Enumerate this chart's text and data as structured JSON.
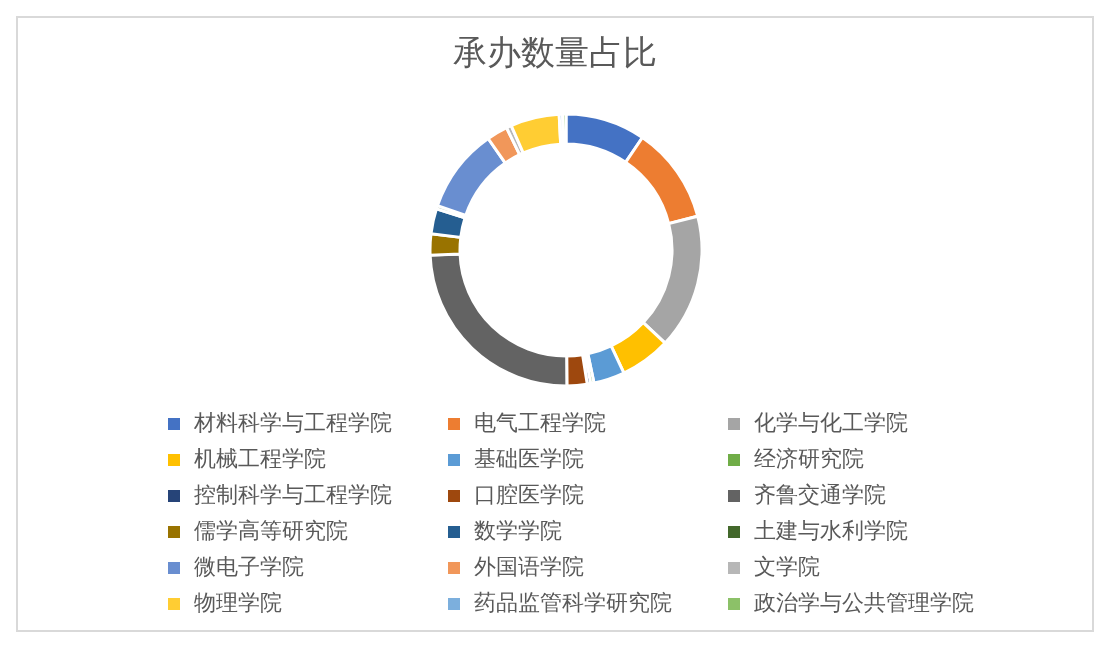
{
  "chart_data": {
    "type": "donut",
    "title": "承办数量占比",
    "legend": "bottom",
    "categories": [
      "材料科学与工程学院",
      "电气工程学院",
      "化学与化工学院",
      "机械工程学院",
      "基础医学院",
      "经济研究院",
      "控制科学与工程学院",
      "口腔医学院",
      "齐鲁交通学院",
      "儒学高等研究院",
      "数学学院",
      "土建与水利学院",
      "微电子学院",
      "外国语学院",
      "文学院",
      "物理学院",
      "药品监管科学研究院",
      "政治学与公共管理学院"
    ],
    "values": [
      9.5,
      11.5,
      16,
      6,
      3.7,
      0.4,
      0.4,
      2.4,
      24.5,
      2.5,
      3,
      0.4,
      10,
      2.5,
      0.6,
      5.8,
      0.4,
      0.4
    ],
    "colors": [
      "#4472c4",
      "#ed7d31",
      "#a5a5a5",
      "#ffc000",
      "#5b9bd5",
      "#70ad47",
      "#264478",
      "#9e480e",
      "#636363",
      "#997300",
      "#255e91",
      "#43682b",
      "#698ed0",
      "#f1975a",
      "#b7b7b7",
      "#ffcd33",
      "#7cafdd",
      "#8cc168"
    ]
  }
}
